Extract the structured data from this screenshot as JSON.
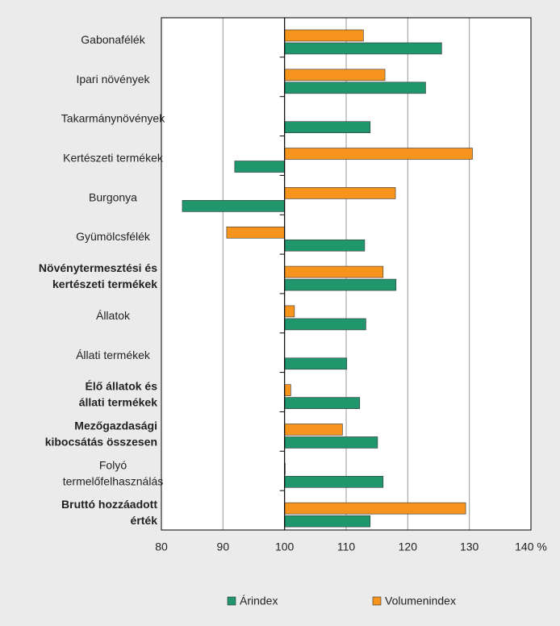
{
  "chart_data": {
    "type": "bar",
    "orientation": "horizontal",
    "base": 100,
    "categories": [
      "Gabonafélék",
      "Ipari növények",
      "Takarmánynövények",
      "Kertészeti termékek",
      "Burgonya",
      "Gyümölcsfélék",
      "Növénytermesztési és\nkertészeti termékek",
      "Állatok",
      "Állati termékek",
      "Élő állatok és\nállati termékek",
      "Mezőgazdasági\nkibocsátás összesen",
      "Folyó\ntermelőfelhasználás",
      "Bruttó hozzáadott\nérték"
    ],
    "bold": [
      false,
      false,
      false,
      false,
      false,
      false,
      true,
      false,
      false,
      true,
      true,
      false,
      true
    ],
    "series": [
      {
        "name": "Volumenindex",
        "color": "#f7941d",
        "values": [
          112.8,
          116.3,
          null,
          130.5,
          118.0,
          90.6,
          116.0,
          101.6,
          null,
          101.0,
          109.4,
          100.1,
          129.4
        ]
      },
      {
        "name": "Árindex",
        "color": "#1f966c",
        "values": [
          125.5,
          122.9,
          113.9,
          91.9,
          83.4,
          113.0,
          118.1,
          113.2,
          110.1,
          112.2,
          115.1,
          116.0,
          113.9
        ]
      }
    ],
    "legend_order": [
      1,
      0
    ],
    "xlim": [
      80,
      140
    ],
    "xticks": [
      80,
      90,
      100,
      110,
      120,
      130,
      {
        "value": 140,
        "label": "140 %"
      }
    ],
    "grid": true
  }
}
